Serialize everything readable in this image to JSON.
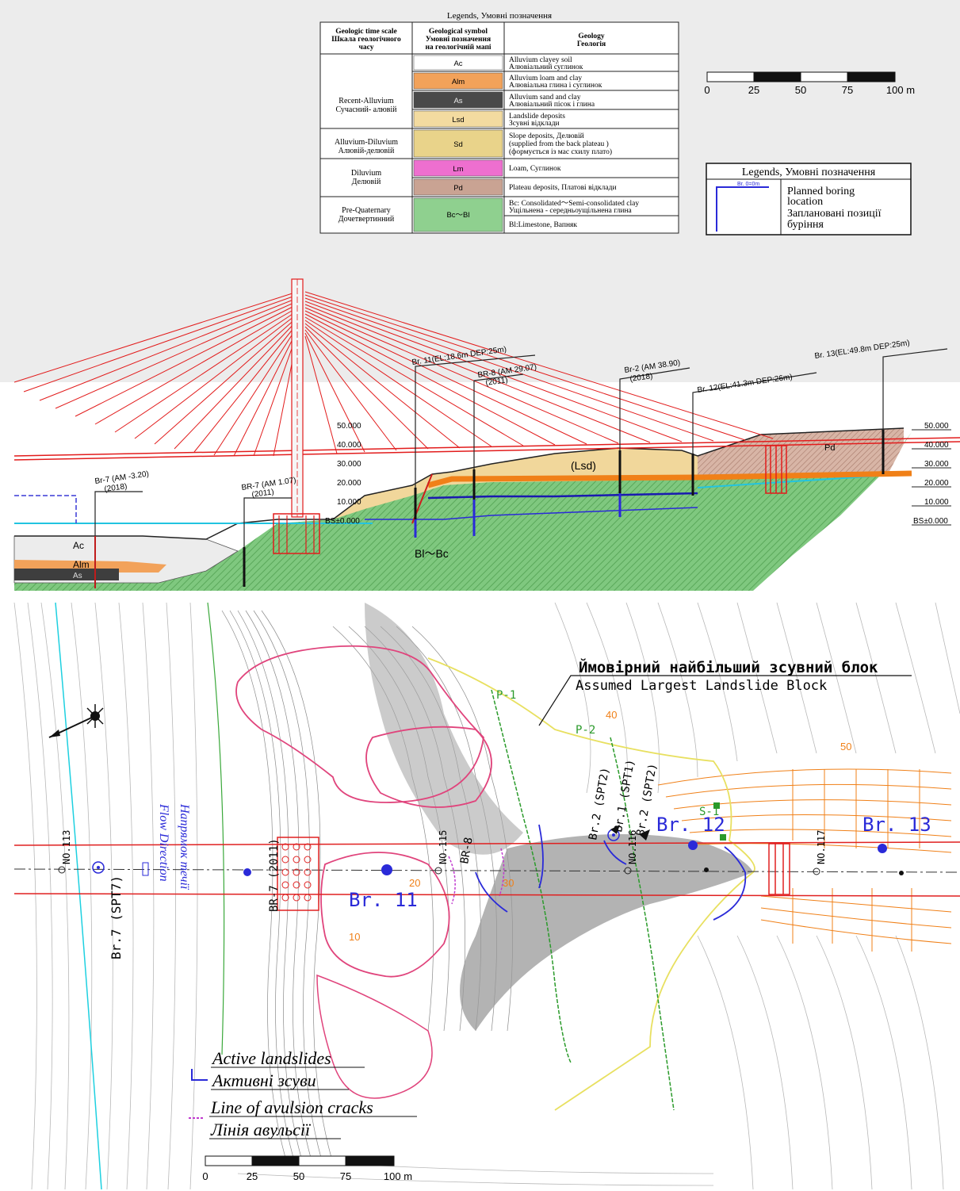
{
  "legend_table": {
    "title": "Legends, Умовні позначення",
    "headers": {
      "time": [
        "Geologic time scale",
        "Шкала геологічного",
        "часу"
      ],
      "symbol": [
        "Geological symbol",
        "Умовні позначення",
        "на геологічній мапі"
      ],
      "geology": [
        "Geology",
        "Геологія"
      ]
    },
    "groups": [
      {
        "label": [
          "Recent-Alluvium",
          "Сучасний- алювій"
        ]
      },
      {
        "label": [
          "Alluvium-Diluvium",
          "Алювій-делювій"
        ]
      },
      {
        "label": [
          "Diluvium",
          "Делювій"
        ]
      },
      {
        "label": [
          "Pre-Quaternary",
          "Дочетвертинний"
        ]
      }
    ],
    "rows": [
      {
        "symbol": "Ac",
        "color": "#ffffff",
        "text": [
          "Alluvium clayey soil",
          "Алювіальний суглинок"
        ]
      },
      {
        "symbol": "Alm",
        "color": "#f2a25a",
        "text": [
          "Alluvium loam and clay",
          "Алювіальна глина і суглинок"
        ]
      },
      {
        "symbol": "As",
        "color": "#4a4a4a",
        "text": [
          "Alluvium sand and clay",
          "Алювіальний пісок і глина"
        ]
      },
      {
        "symbol": "Lsd",
        "color": "#f3dba0",
        "text": [
          "Landslide deposits",
          "Зсувні відклади"
        ]
      },
      {
        "symbol": "Sd",
        "color": "#e9d38a",
        "text": [
          "Slope deposits, Делювій",
          "(supplied from the back plateau )",
          "(формується із мас схилу плато)"
        ]
      },
      {
        "symbol": "Lm",
        "color": "#ee6fcf",
        "text": [
          "Loam, Суглинок"
        ]
      },
      {
        "symbol": "Pd",
        "color": "#c9a393",
        "text": [
          "Plateau deposits, Платові відклади"
        ]
      },
      {
        "symbol": "Bc～Bl",
        "color": "#8fd08f",
        "text": [
          "Bc: Consolidated～Semi-consolidated clay",
          "Ущільнена - середньоущільнена глина"
        ]
      },
      {
        "text": [
          "Bl:Limestone, Вапняк"
        ]
      }
    ]
  },
  "scale_bar_top": {
    "ticks": [
      "0",
      "25",
      "50",
      "75",
      "100 m"
    ]
  },
  "boring_legend": {
    "title": "Legends, Умовні позначення",
    "sample_label": "Br. 0=0m",
    "text": [
      "Planned boring",
      "location",
      "Заплановані позиції",
      "буріння"
    ]
  },
  "section": {
    "elevation_labels": [
      "50.000",
      "40.000",
      "30.000",
      "20.000",
      "10.000",
      "BS±0.000"
    ],
    "boreholes": [
      {
        "label": "Br-7 (AM -3.20)",
        "year": "(2018)"
      },
      {
        "label": "BR-7 (AM 1.07)",
        "year": "(2011)"
      },
      {
        "label": "Br. 11(EL:18.6m DEP:25m)",
        "year": ""
      },
      {
        "label": "BR-8 (AM 29.07)",
        "year": "(2011)"
      },
      {
        "label": "Br-2 (AM 38.90)",
        "year": "(2018)"
      },
      {
        "label": "Br. 12(EL:41.3m DEP:26m)",
        "year": ""
      },
      {
        "label": "Br. 13(EL:49.8m DEP:25m)",
        "year": ""
      }
    ],
    "layer_labels": [
      "Ac",
      "Alm",
      "As",
      "(Lsd)",
      "Pd",
      "Bl～Bc"
    ]
  },
  "map": {
    "title_ua": "Ймовірний найбільший зсувний блок",
    "title_en": "Assumed Largest Landslide Block",
    "stations": [
      "NO.113",
      "NO.115",
      "NO.116",
      "NO.117"
    ],
    "flow_ua": "Напрямок течії",
    "flow_en": "Flow Direction",
    "borings": [
      "Br.7 (SPT7)",
      "BR-7 (2011)",
      "BR-8",
      "Br.2 (SPT2)",
      "Br.1 (SPT1)",
      "Br.2 (SPT2)"
    ],
    "big_labels": [
      "Br. 11",
      "Br. 12",
      "Br. 13"
    ],
    "contour_labels": [
      "10",
      "20",
      "30",
      "40",
      "50"
    ],
    "piezometers": [
      "P-1",
      "P-2",
      "S-1"
    ],
    "legend_active_en": "Active landslides",
    "legend_active_ua": "Активні зсуви",
    "legend_cracks_en": "Line of avulsion cracks",
    "legend_cracks_ua": "Лінія авульсії",
    "scale_ticks": [
      "0",
      "25",
      "50",
      "75",
      "100 m"
    ]
  }
}
